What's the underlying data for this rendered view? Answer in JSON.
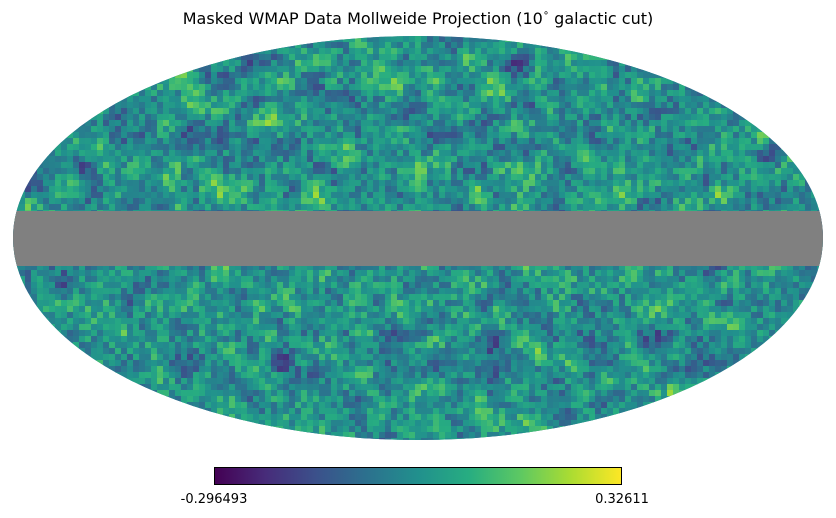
{
  "chart_data": {
    "type": "heatmap",
    "projection": "mollweide",
    "title": "Masked WMAP Data Mollweide Projection (10",
    "title_degree_sign": "∘",
    "title_suffix": " galactic cut)",
    "mask": {
      "description_as_shown": "galactic band",
      "latitude_cut_deg": 10,
      "color": "#808080"
    },
    "colorbar": {
      "min_label": "-0.296493",
      "max_label": "0.32611",
      "min": -0.296493,
      "max": 0.32611,
      "colormap": "viridis",
      "orientation": "horizontal"
    },
    "colors": {
      "viridis": [
        "#440154",
        "#472c7a",
        "#3b518b",
        "#2c718e",
        "#21908d",
        "#27ad81",
        "#5cc863",
        "#aadc32",
        "#fde725"
      ],
      "mask_gray": "#808080"
    },
    "grid": false,
    "legend": "none"
  }
}
